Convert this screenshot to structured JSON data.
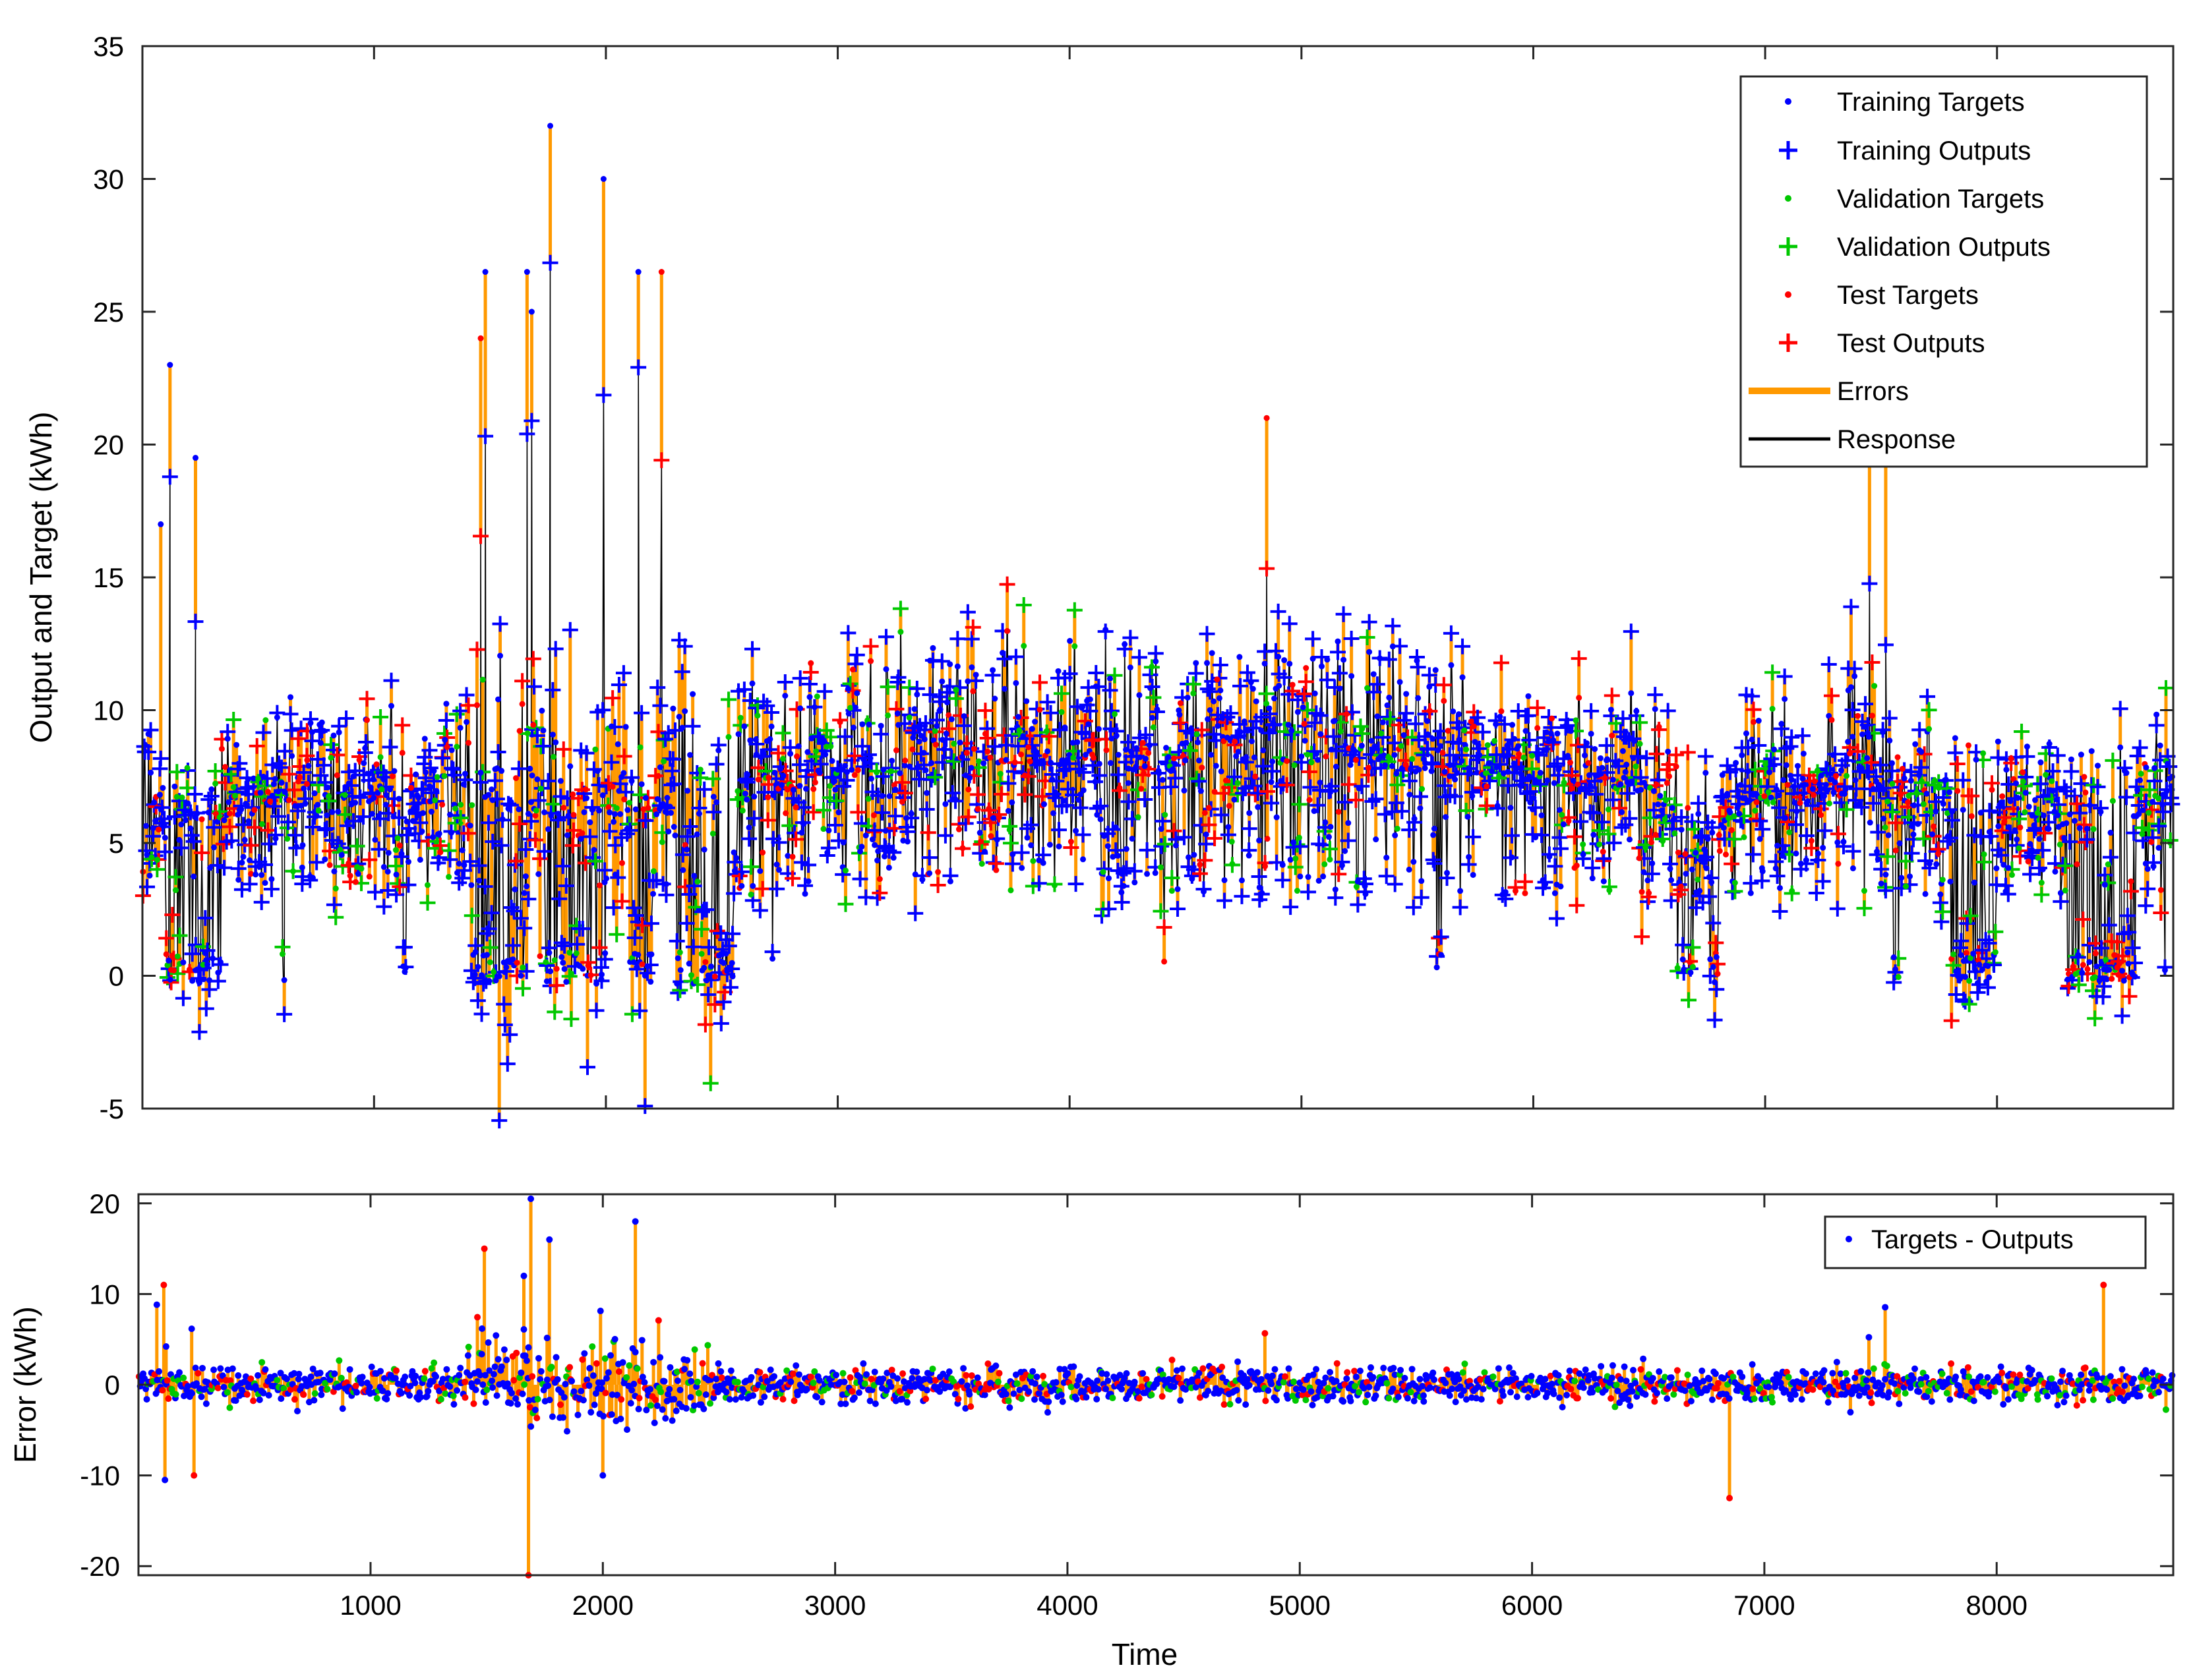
{
  "colors": {
    "training": "#0000ff",
    "validation": "#00c800",
    "test": "#ff0000",
    "errors": "#ff9900",
    "response": "#000000"
  },
  "chart_data": [
    {
      "type": "scatter",
      "panel": "response",
      "ylabel": "Output and Target (kWh)",
      "xlabel": "",
      "xlim": [
        1,
        8760
      ],
      "ylim": [
        -5,
        35
      ],
      "xticks": [
        1000,
        2000,
        3000,
        4000,
        5000,
        6000,
        7000,
        8000
      ],
      "xtick_labels": [
        "",
        "",
        "",
        "",
        "",
        "",
        "",
        ""
      ],
      "yticks": [
        -5,
        0,
        5,
        10,
        15,
        20,
        25,
        30,
        35
      ],
      "ytick_labels": [
        "-5",
        "0",
        "5",
        "10",
        "15",
        "20",
        "25",
        "30",
        "35"
      ],
      "legend_position": "top-right",
      "legend": [
        {
          "label": "Training Targets",
          "marker": "dot",
          "color": "#0000ff"
        },
        {
          "label": "Training Outputs",
          "marker": "plus",
          "color": "#0000ff"
        },
        {
          "label": "Validation Targets",
          "marker": "dot",
          "color": "#00c800"
        },
        {
          "label": "Validation Outputs",
          "marker": "plus",
          "color": "#00c800"
        },
        {
          "label": "Test Targets",
          "marker": "dot",
          "color": "#ff0000"
        },
        {
          "label": "Test Outputs",
          "marker": "plus",
          "color": "#ff0000"
        },
        {
          "label": "Errors",
          "marker": "line",
          "color": "#ff9900"
        },
        {
          "label": "Response",
          "marker": "line",
          "color": "#000000"
        }
      ],
      "approximate_profile": {
        "x": [
          100,
          250,
          400,
          600,
          800,
          1000,
          1200,
          1400,
          1500,
          1650,
          1750,
          1850,
          2000,
          2150,
          2300,
          2500,
          2700,
          2900,
          3200,
          3500,
          3800,
          4100,
          4400,
          4700,
          5000,
          5300,
          5600,
          5900,
          6200,
          6500,
          6600,
          6700,
          6900,
          7200,
          7400,
          7500,
          7700,
          7900,
          8200,
          8400,
          8600,
          8750
        ],
        "base": [
          5.5,
          5.5,
          6,
          6.5,
          6,
          6.5,
          6,
          6,
          6.5,
          6,
          6,
          6,
          6,
          6,
          6,
          6,
          7,
          7,
          7.5,
          8,
          8,
          8,
          7.5,
          8,
          8,
          8,
          7.5,
          7.5,
          7,
          7,
          5,
          4,
          6.5,
          6.5,
          7,
          7,
          6,
          6,
          5.5,
          5.5,
          6,
          7
        ],
        "spread": [
          6,
          5,
          4,
          5,
          5,
          5,
          5,
          6,
          7,
          7,
          7,
          6,
          6,
          6,
          6,
          6,
          6,
          6,
          6,
          6,
          6,
          6,
          6,
          6,
          6,
          6,
          5.5,
          5,
          4.5,
          4.5,
          4,
          4,
          5,
          4.5,
          5,
          5,
          5,
          5,
          5,
          5,
          5,
          4.5
        ]
      },
      "notable_peaks": [
        {
          "x": 80,
          "y": 17
        },
        {
          "x": 120,
          "y": 23
        },
        {
          "x": 230,
          "y": 19.5
        },
        {
          "x": 1460,
          "y": 24
        },
        {
          "x": 1480,
          "y": 26.5
        },
        {
          "x": 1660,
          "y": 26.5
        },
        {
          "x": 1680,
          "y": 25
        },
        {
          "x": 1760,
          "y": 32
        },
        {
          "x": 1990,
          "y": 30
        },
        {
          "x": 2140,
          "y": 26.5
        },
        {
          "x": 2240,
          "y": 26.5
        },
        {
          "x": 4850,
          "y": 21
        },
        {
          "x": 7450,
          "y": 20
        },
        {
          "x": 7520,
          "y": 21
        }
      ],
      "dropouts_near_zero": [
        [
          100,
          350
        ],
        [
          600,
          620
        ],
        [
          1120,
          1140
        ],
        [
          1420,
          1650
        ],
        [
          1700,
          2000
        ],
        [
          2100,
          2200
        ],
        [
          2300,
          2550
        ],
        [
          2700,
          2720
        ],
        [
          4400,
          4410
        ],
        [
          5580,
          5620
        ],
        [
          6620,
          6700
        ],
        [
          6750,
          6800
        ],
        [
          7550,
          7600
        ],
        [
          7800,
          8000
        ],
        [
          8300,
          8600
        ],
        [
          8720,
          8730
        ]
      ]
    },
    {
      "type": "scatter",
      "panel": "error",
      "ylabel": "Error (kWh)",
      "xlabel": "Time",
      "xlim": [
        1,
        8760
      ],
      "ylim": [
        -21,
        21
      ],
      "xticks": [
        1000,
        2000,
        3000,
        4000,
        5000,
        6000,
        7000,
        8000
      ],
      "xtick_labels": [
        "1000",
        "2000",
        "3000",
        "4000",
        "5000",
        "6000",
        "7000",
        "8000"
      ],
      "yticks": [
        -20,
        -10,
        0,
        10,
        20
      ],
      "ytick_labels": [
        "-20",
        "-10",
        "0",
        "10",
        "20"
      ],
      "legend_position": "top-right",
      "legend": [
        {
          "label": "Targets - Outputs",
          "marker": "dot",
          "color": "#0000ff"
        }
      ],
      "typical_error_band": [
        -2,
        2
      ],
      "notable_spikes": [
        {
          "x": 110,
          "y": 11
        },
        {
          "x": 115,
          "y": -10.5
        },
        {
          "x": 240,
          "y": -10
        },
        {
          "x": 1490,
          "y": 15
        },
        {
          "x": 1660,
          "y": 12
        },
        {
          "x": 1690,
          "y": 20.5
        },
        {
          "x": 1680,
          "y": -21
        },
        {
          "x": 1770,
          "y": 16
        },
        {
          "x": 2000,
          "y": -10
        },
        {
          "x": 2140,
          "y": 18
        },
        {
          "x": 6850,
          "y": -12.5
        },
        {
          "x": 8460,
          "y": 11
        }
      ]
    }
  ]
}
